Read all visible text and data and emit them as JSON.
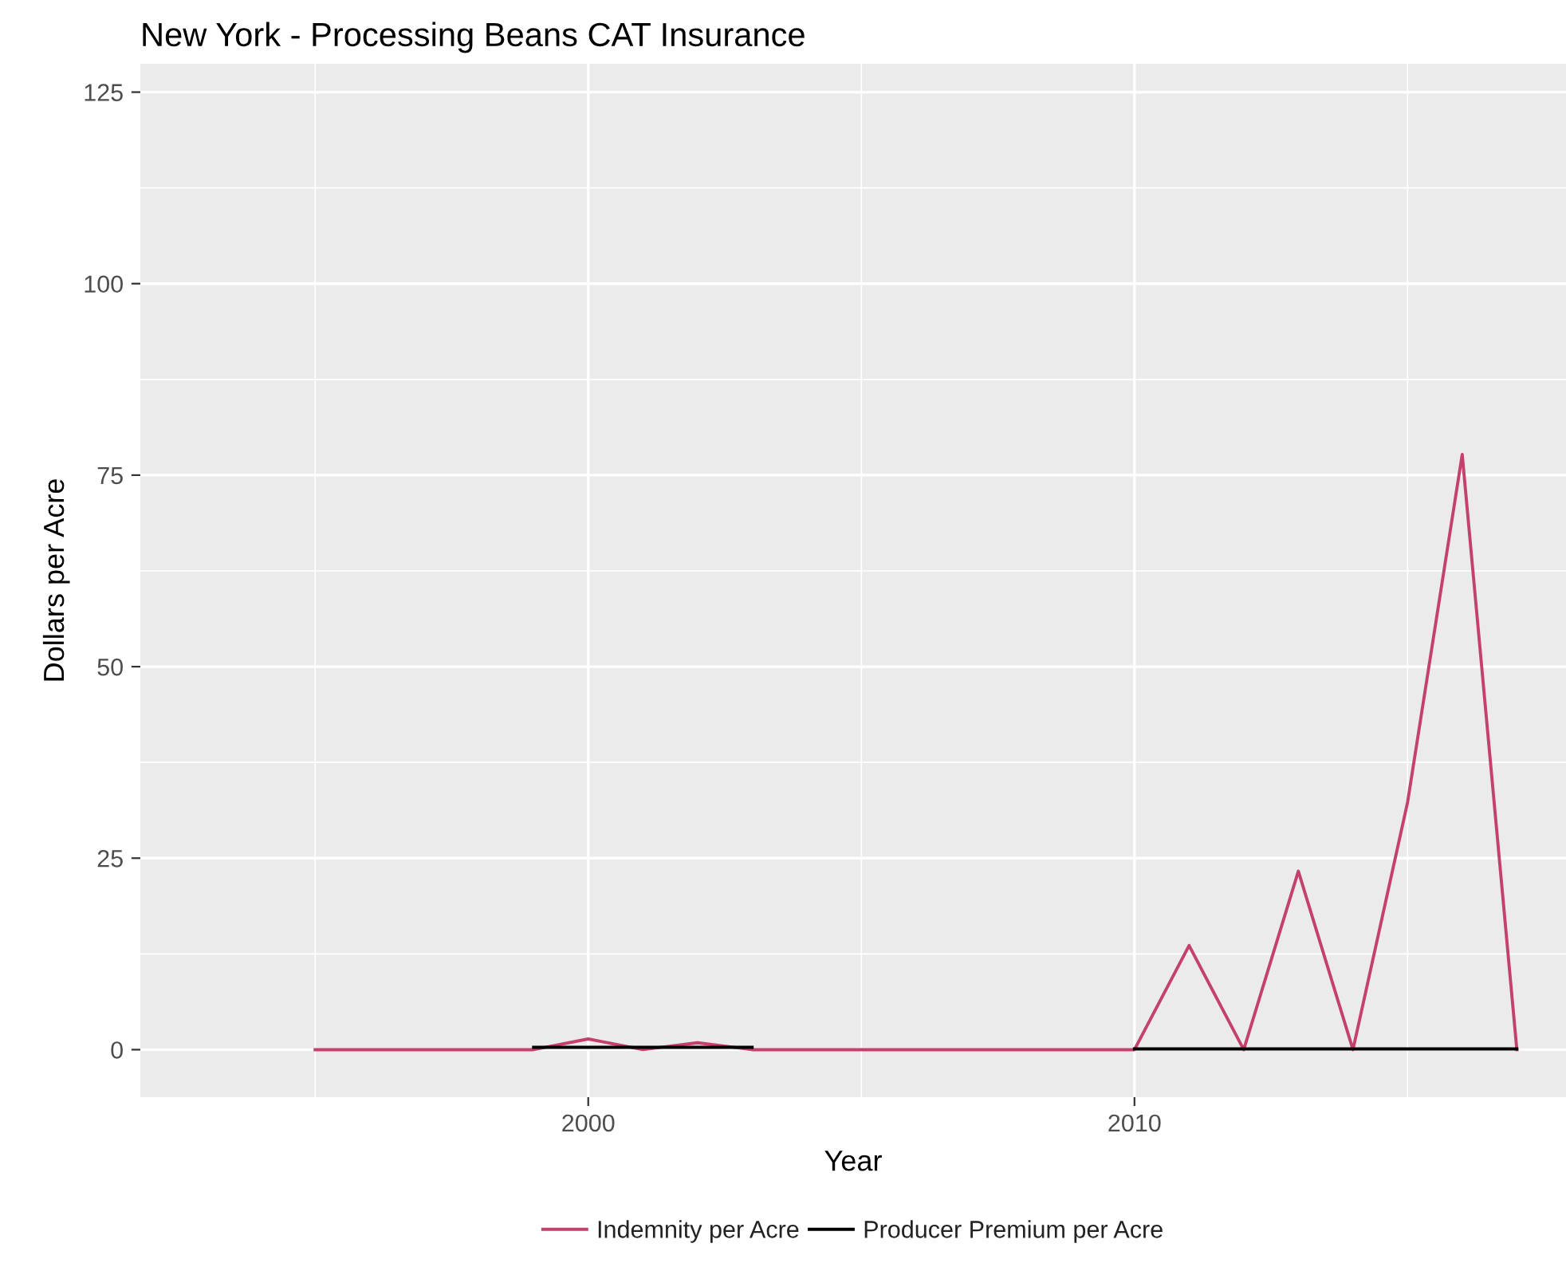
{
  "chart_data": {
    "type": "line",
    "title": "New York - Processing Beans CAT Insurance",
    "xlabel": "Year",
    "ylabel": "Dollars per Acre",
    "x": [
      1995,
      1996,
      1997,
      1998,
      1999,
      2000,
      2001,
      2002,
      2003,
      2004,
      2005,
      2006,
      2007,
      2008,
      2009,
      2010,
      2011,
      2012,
      2013,
      2014,
      2015,
      2016,
      2017
    ],
    "series": [
      {
        "name": "Indemnity per Acre",
        "color": "#c4416d",
        "values": [
          0,
          0,
          0,
          0,
          0,
          1.4,
          0,
          0.9,
          0,
          0,
          0,
          0,
          0,
          0,
          0,
          0,
          13.6,
          0,
          23.3,
          0,
          32.3,
          77.7,
          0
        ]
      },
      {
        "name": "Producer Premium per Acre",
        "color": "#000000",
        "values": [
          null,
          null,
          null,
          null,
          0.3,
          0.3,
          0.3,
          0.3,
          0.3,
          null,
          null,
          null,
          null,
          null,
          null,
          0.1,
          0.1,
          0.1,
          0.1,
          0.1,
          0.1,
          0.1,
          0.1
        ]
      }
    ],
    "xlim": [
      1991.8,
      2017.9
    ],
    "xticks": [
      2000,
      2010
    ],
    "ylim": [
      -6.2,
      128.7
    ],
    "yticks": [
      0,
      25,
      50,
      75,
      100,
      125
    ],
    "grid": true,
    "legend": "bottom"
  }
}
